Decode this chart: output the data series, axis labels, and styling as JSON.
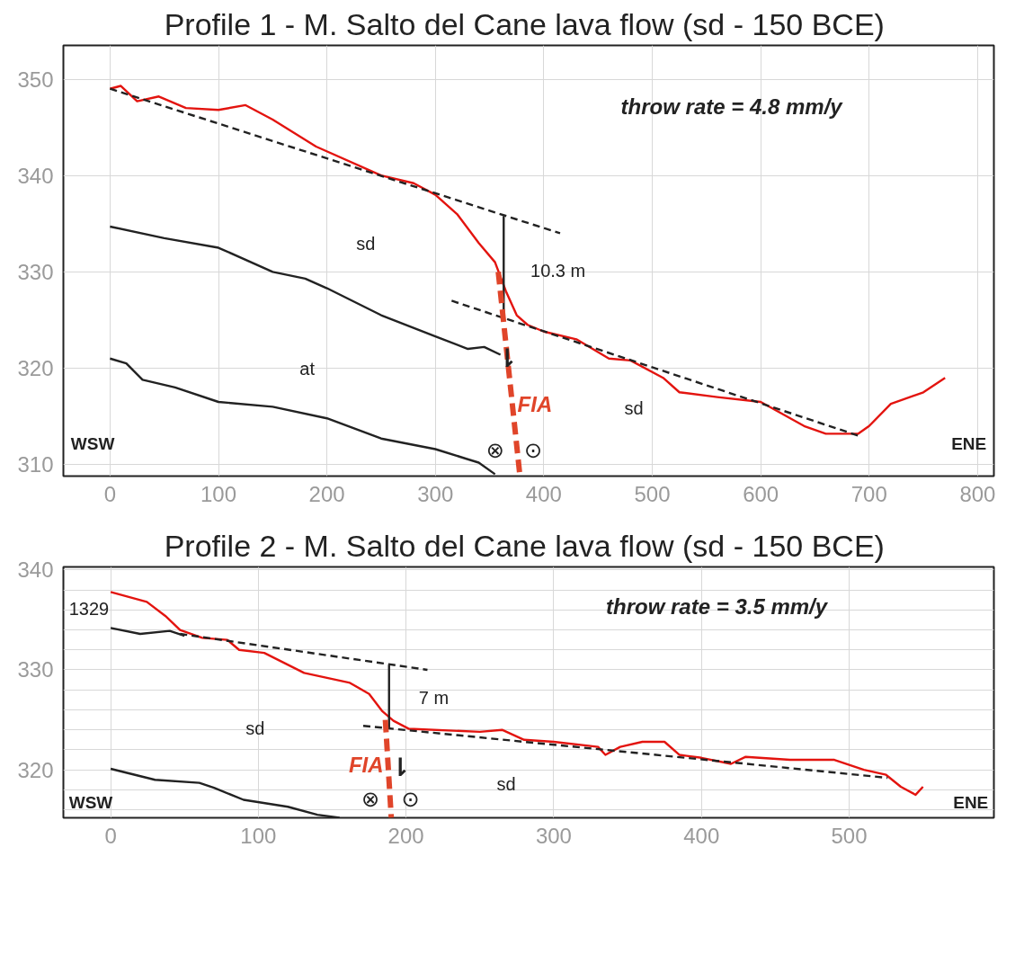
{
  "chart_data": [
    {
      "type": "line",
      "title": "Profile 1  - M. Salto del Cane lava flow (sd - 150 BCE)",
      "xlim": [
        -43,
        815
      ],
      "ylim": [
        308.8,
        353.5
      ],
      "xticks": [
        0,
        100,
        200,
        300,
        400,
        500,
        600,
        700,
        800
      ],
      "yticks": [
        310,
        320,
        330,
        340,
        350
      ],
      "grid": true,
      "series": [
        {
          "color": "#e3140f",
          "line_style": "solid",
          "x": [
            0,
            10,
            25,
            45,
            70,
            100,
            125,
            150,
            190,
            250,
            280,
            300,
            320,
            340,
            355,
            365,
            375,
            385,
            400,
            430,
            460,
            480,
            510,
            525,
            560,
            600,
            640,
            660,
            690,
            700,
            720,
            750,
            770
          ],
          "values": [
            349,
            349.3,
            347.7,
            348.2,
            347,
            346.8,
            347.3,
            345.8,
            343,
            340,
            339.2,
            338,
            336,
            333,
            331,
            328,
            325.5,
            324.5,
            323.8,
            323,
            321,
            320.8,
            319,
            317.5,
            317,
            316.5,
            314,
            313.2,
            313.2,
            314,
            316.3,
            317.5,
            319
          ]
        },
        {
          "color": "#222222",
          "line_style": "dashed",
          "x": [
            0,
            415
          ],
          "values": [
            349,
            334
          ]
        },
        {
          "color": "#222222",
          "line_style": "dashed",
          "x": [
            315,
            690
          ],
          "values": [
            327,
            313
          ]
        },
        {
          "color": "#222222",
          "line_style": "solid",
          "x": [
            0,
            50,
            100,
            150,
            180,
            200,
            250,
            300,
            330,
            345,
            360
          ],
          "values": [
            334.7,
            333.5,
            332.5,
            330,
            329.3,
            328.3,
            325.5,
            323.3,
            322,
            322.2,
            321.4
          ]
        },
        {
          "color": "#222222",
          "line_style": "solid",
          "x": [
            0,
            15,
            30,
            60,
            100,
            150,
            200,
            250,
            300,
            340,
            355
          ],
          "values": [
            321,
            320.5,
            318.8,
            318,
            316.5,
            316,
            314.8,
            312.7,
            311.6,
            310.2,
            309
          ]
        },
        {
          "color": "#222222",
          "line_style": "solid",
          "x": [
            363,
            363
          ],
          "values": [
            335.8,
            325.4
          ]
        },
        {
          "color": "#e0452a",
          "line_style": "dashed",
          "x": [
            358,
            378
          ],
          "values": [
            330,
            308.8
          ]
        }
      ],
      "annotations": [
        "throw rate = 4.8 mm/y",
        "10.3 m",
        "sd",
        "at",
        "sd",
        "FIA",
        "⇂",
        "⊗",
        "⊙",
        "WSW",
        "ENE"
      ]
    },
    {
      "type": "line",
      "title": "Profile 2  - M. Salto del Cane lava flow (sd - 150 BCE)",
      "xlim": [
        -32,
        598
      ],
      "ylim": [
        315.2,
        340.3
      ],
      "xticks": [
        0,
        100,
        200,
        300,
        400,
        500
      ],
      "yticks": [
        {
          "value": 316,
          "label": null
        },
        {
          "value": 318,
          "label": null
        },
        320,
        {
          "value": 322,
          "label": null
        },
        {
          "value": 324,
          "label": null
        },
        {
          "value": 326,
          "label": null
        },
        {
          "value": 328,
          "label": null
        },
        330,
        {
          "value": 332,
          "label": null
        },
        {
          "value": 334,
          "label": null
        },
        {
          "value": 336,
          "label": null
        },
        {
          "value": 338,
          "label": null
        },
        340
      ],
      "grid": true,
      "series": [
        {
          "color": "#e3140f",
          "line_style": "solid",
          "x": [
            0,
            24.5,
            37,
            47,
            62,
            79,
            87,
            104,
            131,
            162,
            175,
            183.7,
            191.5,
            202,
            250,
            265,
            280,
            300,
            330,
            335,
            345,
            360,
            375,
            385,
            400,
            420,
            430,
            460,
            490,
            510,
            525,
            535,
            545,
            550
          ],
          "values": [
            337.8,
            336.8,
            335.4,
            334,
            333.2,
            333,
            332,
            331.7,
            329.7,
            328.7,
            327.6,
            325.9,
            324.9,
            324.1,
            323.8,
            324,
            323,
            322.8,
            322.3,
            321.5,
            322.3,
            322.8,
            322.8,
            321.5,
            321.2,
            320.6,
            321.3,
            321,
            321,
            320,
            319.5,
            318.3,
            317.5,
            318.3
          ]
        },
        {
          "color": "#222222",
          "line_style": "dashed",
          "x": [
            47,
            214.5
          ],
          "values": [
            333.6,
            330
          ]
        },
        {
          "color": "#222222",
          "line_style": "dashed",
          "x": [
            171,
            526
          ],
          "values": [
            324.4,
            319.2
          ]
        },
        {
          "color": "#222222",
          "line_style": "solid",
          "x": [
            0,
            20,
            40,
            50
          ],
          "values": [
            334.2,
            333.6,
            333.9,
            333.4
          ]
        },
        {
          "color": "#222222",
          "line_style": "solid",
          "x": [
            0,
            30,
            60,
            70,
            90,
            120,
            140,
            155
          ],
          "values": [
            320.1,
            319,
            318.7,
            318.2,
            317,
            316.3,
            315.5,
            315.2
          ]
        },
        {
          "color": "#222222",
          "line_style": "solid",
          "x": [
            188.5,
            188.5
          ],
          "values": [
            330.5,
            324.1
          ]
        },
        {
          "color": "#e0452a",
          "line_style": "dashed",
          "x": [
            186,
            190
          ],
          "values": [
            325,
            315.2
          ]
        }
      ],
      "annotations": [
        "throw rate = 3.5 mm/y",
        "7 m",
        "sd",
        "sd",
        "FIA",
        "⇂",
        "⊗",
        "⊙",
        "WSW",
        "ENE",
        "1329"
      ]
    }
  ]
}
